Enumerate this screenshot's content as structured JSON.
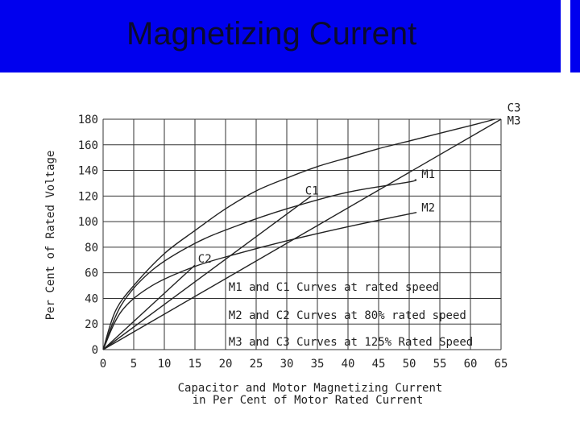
{
  "slide": {
    "title": "Magnetizing Current"
  },
  "chart_data": {
    "type": "line",
    "xlabel_line1": "Capacitor and Motor Magnetizing Current",
    "xlabel_line2": "in Per Cent of Motor Rated Current",
    "ylabel": "Per Cent of Rated Voltage",
    "xlim": [
      0,
      65
    ],
    "ylim": [
      0,
      180
    ],
    "x_ticks": [
      0,
      5,
      10,
      15,
      20,
      25,
      30,
      35,
      40,
      45,
      50,
      55,
      60,
      65
    ],
    "y_ticks": [
      0,
      20,
      40,
      60,
      80,
      100,
      120,
      140,
      160,
      180
    ],
    "grid": true,
    "series": [
      {
        "name": "M1",
        "points": [
          [
            0,
            0
          ],
          [
            3,
            35
          ],
          [
            8,
            62
          ],
          [
            15,
            83
          ],
          [
            22,
            97
          ],
          [
            30,
            110
          ],
          [
            40,
            123
          ],
          [
            50,
            131
          ],
          [
            51,
            133
          ]
        ],
        "color": "#222222"
      },
      {
        "name": "M2",
        "points": [
          [
            0,
            0
          ],
          [
            3,
            30
          ],
          [
            8,
            50
          ],
          [
            15,
            65
          ],
          [
            22,
            75
          ],
          [
            30,
            85
          ],
          [
            40,
            96
          ],
          [
            50,
            106
          ],
          [
            51,
            107
          ]
        ],
        "color": "#222222"
      },
      {
        "name": "M3",
        "points": [
          [
            0,
            0
          ],
          [
            65,
            180
          ]
        ],
        "color": "#222222"
      },
      {
        "name": "C1",
        "points": [
          [
            0,
            0
          ],
          [
            34,
            120
          ]
        ],
        "color": "#222222"
      },
      {
        "name": "C2",
        "points": [
          [
            0,
            0
          ],
          [
            15,
            66
          ]
        ],
        "color": "#222222"
      },
      {
        "name": "C3",
        "points": [
          [
            0,
            0
          ],
          [
            2,
            30
          ],
          [
            5,
            50
          ],
          [
            10,
            75
          ],
          [
            15,
            93
          ],
          [
            20,
            110
          ],
          [
            25,
            124
          ],
          [
            30,
            134
          ],
          [
            35,
            143
          ],
          [
            40,
            150
          ],
          [
            45,
            157
          ],
          [
            50,
            163
          ],
          [
            55,
            169
          ],
          [
            60,
            175
          ],
          [
            64,
            180
          ]
        ],
        "color": "#222222"
      }
    ],
    "curve_labels": [
      {
        "text": "M1",
        "x": 52,
        "y": 134
      },
      {
        "text": "M2",
        "x": 52,
        "y": 108
      },
      {
        "text": "C1",
        "x": 33,
        "y": 121
      },
      {
        "text": "C2",
        "x": 15.5,
        "y": 68
      },
      {
        "text": "C3",
        "x": 66,
        "y": 186
      },
      {
        "text": "M3",
        "x": 66,
        "y": 176
      }
    ],
    "annotations": [
      {
        "text": "M1 and C1 Curves at rated speed",
        "x": 20.5,
        "y": 46
      },
      {
        "text": "M2 and C2 Curves at 80% rated speed",
        "x": 20.5,
        "y": 24
      },
      {
        "text": "M3 and C3 Curves at 125% Rated Speed",
        "x": 20.5,
        "y": 3
      }
    ]
  }
}
